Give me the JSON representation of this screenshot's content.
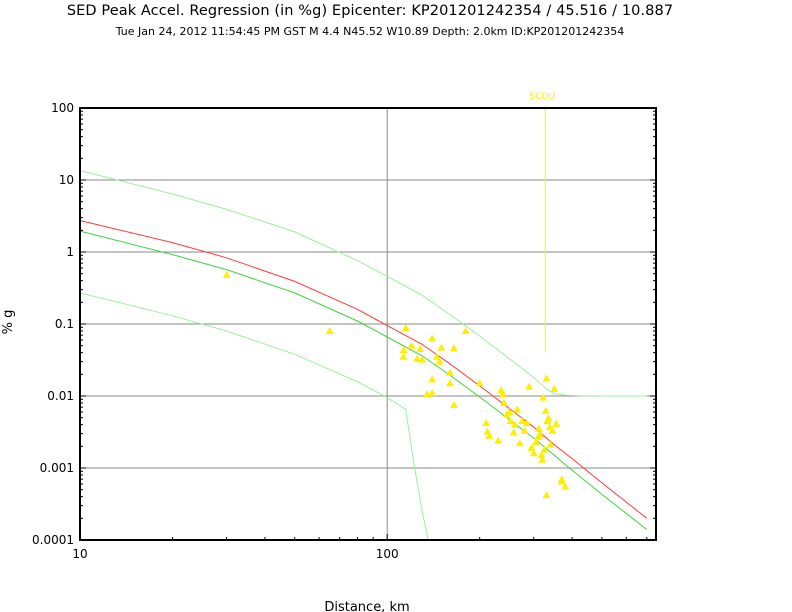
{
  "header": {
    "title": "SED Peak Accel. Regression (in %g) Epicenter: KP201201242354 / 45.516 / 10.887",
    "subtitle": "Tue Jan 24, 2012 11:54:45 PM GST    M 4.4    N45.52 W10.89    Depth: 2.0km    ID:KP201201242354"
  },
  "chart_data": {
    "type": "scatter",
    "xlabel": "Distance, km",
    "ylabel": "% g",
    "xscale": "log",
    "yscale": "log",
    "xlim": [
      10,
      750
    ],
    "ylim": [
      0.0001,
      100
    ],
    "x_ticks": [
      {
        "value": 10,
        "label": "10"
      },
      {
        "value": 100,
        "label": "100"
      }
    ],
    "y_ticks": [
      {
        "value": 100,
        "label": "100"
      },
      {
        "value": 10,
        "label": "10"
      },
      {
        "value": 1,
        "label": "1"
      },
      {
        "value": 0.1,
        "label": "0.1"
      },
      {
        "value": 0.01,
        "label": "0.01"
      },
      {
        "value": 0.001,
        "label": "0.001"
      },
      {
        "value": 0.0001,
        "label": "0.0001"
      }
    ],
    "grid": true,
    "colors": {
      "red_curve": "#ff3b3b",
      "green_curve": "#3fd43f",
      "bounds_curve": "#9cf09c",
      "observations": "#ffee00",
      "station_marker": "#ffee00"
    },
    "curves": [
      {
        "id": "red",
        "x": [
          10,
          20,
          30,
          50,
          80,
          100,
          130,
          160,
          200,
          250,
          300,
          350,
          400,
          500,
          700
        ],
        "y": [
          2.74,
          1.35,
          0.83,
          0.39,
          0.16,
          0.095,
          0.052,
          0.028,
          0.0138,
          0.0067,
          0.0037,
          0.0021,
          0.00135,
          0.00062,
          0.0002
        ]
      },
      {
        "id": "green",
        "x": [
          10,
          20,
          30,
          50,
          80,
          100,
          130,
          160,
          200,
          250,
          300,
          350,
          400,
          500,
          700
        ],
        "y": [
          1.95,
          0.92,
          0.57,
          0.27,
          0.11,
          0.066,
          0.036,
          0.0195,
          0.0097,
          0.0047,
          0.0026,
          0.0015,
          0.00093,
          0.00043,
          0.00014
        ]
      },
      {
        "id": "upper",
        "x": [
          10,
          20,
          30,
          50,
          80,
          100,
          130,
          160,
          200,
          250,
          300,
          330,
          350,
          380,
          420,
          500,
          600,
          700
        ],
        "y": [
          13.5,
          6.4,
          3.9,
          1.9,
          0.76,
          0.46,
          0.25,
          0.135,
          0.068,
          0.033,
          0.018,
          0.0125,
          0.0108,
          0.0103,
          0.0101,
          0.01,
          0.01,
          0.01
        ]
      },
      {
        "id": "lower",
        "x": [
          10,
          20,
          30,
          50,
          80,
          100,
          115,
          122,
          130,
          136
        ],
        "y": [
          0.27,
          0.13,
          0.08,
          0.038,
          0.0158,
          0.0095,
          0.0065,
          0.0012,
          0.00025,
          0.0001
        ]
      }
    ],
    "observations": {
      "x": [
        30,
        65,
        115,
        113,
        113,
        120,
        125,
        130,
        128,
        140,
        145,
        150,
        148,
        160,
        165,
        160,
        140,
        180,
        140,
        200,
        165,
        135,
        210,
        215,
        212,
        230,
        235,
        238,
        240,
        245,
        250,
        252,
        258,
        260,
        265,
        270,
        275,
        280,
        285,
        290,
        295,
        300,
        305,
        310,
        312,
        315,
        318,
        320,
        322,
        325,
        328,
        330,
        332,
        335,
        338,
        340,
        345,
        350,
        355,
        330,
        370,
        380,
        370
      ],
      "y": [
        0.48,
        0.08,
        0.088,
        0.043,
        0.035,
        0.05,
        0.033,
        0.032,
        0.045,
        0.063,
        0.035,
        0.047,
        0.03,
        0.015,
        0.046,
        0.021,
        0.017,
        0.08,
        0.011,
        0.015,
        0.0075,
        0.0105,
        0.0042,
        0.0028,
        0.0032,
        0.0024,
        0.012,
        0.0105,
        0.008,
        0.0055,
        0.006,
        0.0045,
        0.0031,
        0.004,
        0.0065,
        0.0022,
        0.0045,
        0.0033,
        0.0042,
        0.0135,
        0.0019,
        0.0016,
        0.0023,
        0.0027,
        0.0035,
        0.0029,
        0.0015,
        0.0013,
        0.0095,
        0.0018,
        0.0062,
        0.0175,
        0.0045,
        0.0049,
        0.0037,
        0.0021,
        0.0033,
        0.0125,
        0.0041,
        0.00042,
        0.0007,
        0.00055,
        0.00065
      ]
    },
    "station": {
      "name": "SCOU",
      "x": 327
    }
  }
}
